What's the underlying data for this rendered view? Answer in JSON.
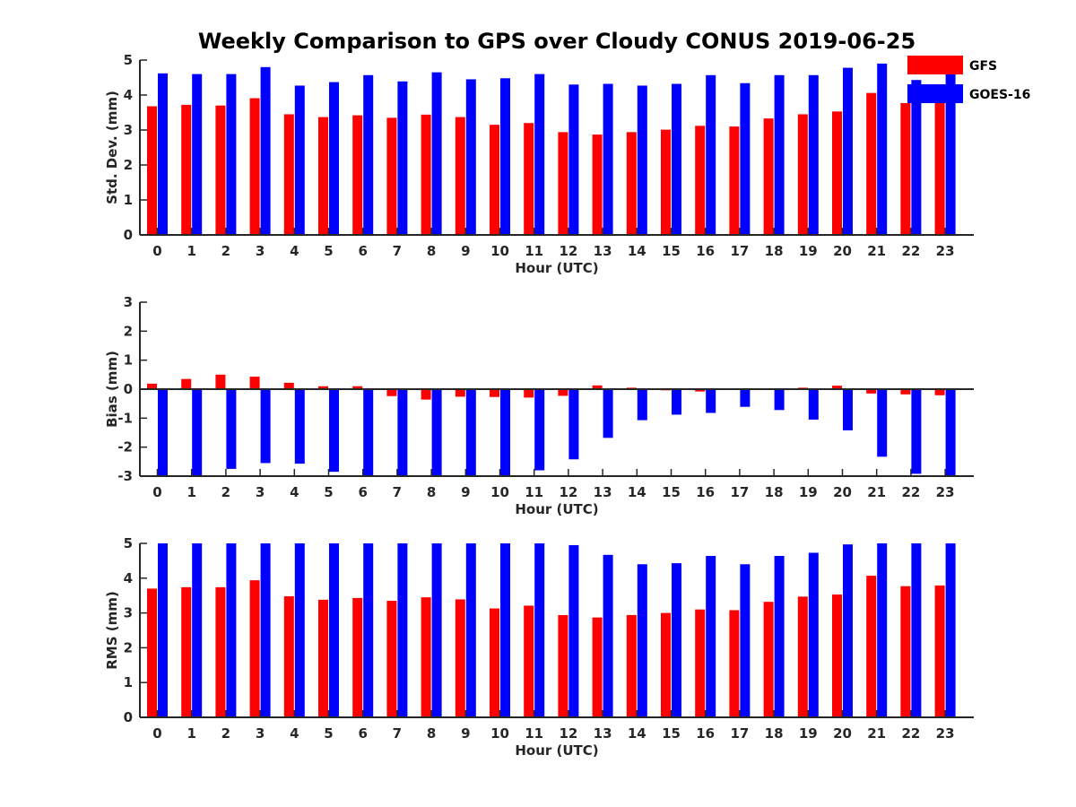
{
  "title": "Weekly Comparison to GPS over Cloudy CONUS 2019-06-25",
  "legend": {
    "placement": "top-right, outside plot",
    "entries": [
      {
        "name": "GFS",
        "color": "#ff0000"
      },
      {
        "name": "GOES-16",
        "color": "#0000ff"
      }
    ]
  },
  "colors": {
    "GFS": "#ff0000",
    "GOES-16": "#0000ff",
    "axis": "#262626"
  },
  "chart_data": [
    {
      "type": "bar",
      "xlabel": "Hour (UTC)",
      "ylabel": "Std. Dev. (mm)",
      "ylim": [
        0,
        5
      ],
      "yticks": [
        "0",
        "1",
        "2",
        "3",
        "4",
        "5"
      ],
      "ytick_values": [
        0,
        1,
        2,
        3,
        4,
        5
      ],
      "categories": [
        "0",
        "1",
        "2",
        "3",
        "4",
        "5",
        "6",
        "7",
        "8",
        "9",
        "10",
        "11",
        "12",
        "13",
        "14",
        "15",
        "16",
        "17",
        "18",
        "19",
        "20",
        "21",
        "22",
        "23"
      ],
      "grid": false,
      "series": [
        {
          "name": "GFS",
          "values": [
            3.68,
            3.72,
            3.7,
            3.91,
            3.45,
            3.37,
            3.42,
            3.35,
            3.44,
            3.37,
            3.15,
            3.2,
            2.94,
            2.87,
            2.94,
            3.01,
            3.12,
            3.1,
            3.33,
            3.45,
            3.53,
            4.06,
            3.77,
            3.78
          ]
        },
        {
          "name": "GOES-16",
          "values": [
            4.62,
            4.6,
            4.6,
            4.8,
            4.27,
            4.37,
            4.57,
            4.39,
            4.65,
            4.45,
            4.48,
            4.6,
            4.3,
            4.32,
            4.27,
            4.32,
            4.57,
            4.34,
            4.57,
            4.57,
            4.78,
            4.9,
            4.43,
            4.62
          ]
        }
      ]
    },
    {
      "type": "bar",
      "xlabel": "Hour (UTC)",
      "ylabel": "Bias (mm)",
      "ylim": [
        -3,
        3
      ],
      "yticks": [
        "-3",
        "-2",
        "-1",
        "0",
        "1",
        "2",
        "3"
      ],
      "ytick_values": [
        -3,
        -2,
        -1,
        0,
        1,
        2,
        3
      ],
      "categories": [
        "0",
        "1",
        "2",
        "3",
        "4",
        "5",
        "6",
        "7",
        "8",
        "9",
        "10",
        "11",
        "12",
        "13",
        "14",
        "15",
        "16",
        "17",
        "18",
        "19",
        "20",
        "21",
        "22",
        "23"
      ],
      "grid": false,
      "series": [
        {
          "name": "GFS",
          "values": [
            0.19,
            0.35,
            0.5,
            0.43,
            0.22,
            0.1,
            0.1,
            -0.24,
            -0.36,
            -0.26,
            -0.27,
            -0.29,
            -0.23,
            0.13,
            0.05,
            -0.04,
            -0.08,
            -0.02,
            0.02,
            0.05,
            0.12,
            -0.15,
            -0.18,
            -0.21
          ]
        },
        {
          "name": "GOES-16",
          "values": [
            -3.0,
            -3.0,
            -2.75,
            -2.55,
            -2.57,
            -2.85,
            -3.0,
            -3.0,
            -3.0,
            -3.0,
            -3.0,
            -2.8,
            -2.42,
            -1.68,
            -1.07,
            -0.88,
            -0.82,
            -0.61,
            -0.72,
            -1.05,
            -1.42,
            -2.33,
            -2.92,
            -3.0
          ]
        }
      ]
    },
    {
      "type": "bar",
      "xlabel": "Hour (UTC)",
      "ylabel": "RMS (mm)",
      "ylim": [
        0,
        5
      ],
      "yticks": [
        "0",
        "1",
        "2",
        "3",
        "4",
        "5"
      ],
      "ytick_values": [
        0,
        1,
        2,
        3,
        4,
        5
      ],
      "categories": [
        "0",
        "1",
        "2",
        "3",
        "4",
        "5",
        "6",
        "7",
        "8",
        "9",
        "10",
        "11",
        "12",
        "13",
        "14",
        "15",
        "16",
        "17",
        "18",
        "19",
        "20",
        "21",
        "22",
        "23"
      ],
      "grid": false,
      "series": [
        {
          "name": "GFS",
          "values": [
            3.7,
            3.74,
            3.74,
            3.94,
            3.48,
            3.38,
            3.43,
            3.35,
            3.45,
            3.39,
            3.13,
            3.21,
            2.94,
            2.87,
            2.94,
            3.0,
            3.1,
            3.08,
            3.32,
            3.47,
            3.53,
            4.07,
            3.77,
            3.79
          ]
        },
        {
          "name": "GOES-16",
          "values": [
            5.0,
            5.0,
            5.0,
            5.0,
            5.0,
            5.0,
            5.0,
            5.0,
            5.0,
            5.0,
            5.0,
            5.0,
            4.95,
            4.67,
            4.4,
            4.43,
            4.64,
            4.4,
            4.64,
            4.73,
            4.97,
            5.0,
            5.0,
            5.0
          ]
        }
      ]
    }
  ]
}
